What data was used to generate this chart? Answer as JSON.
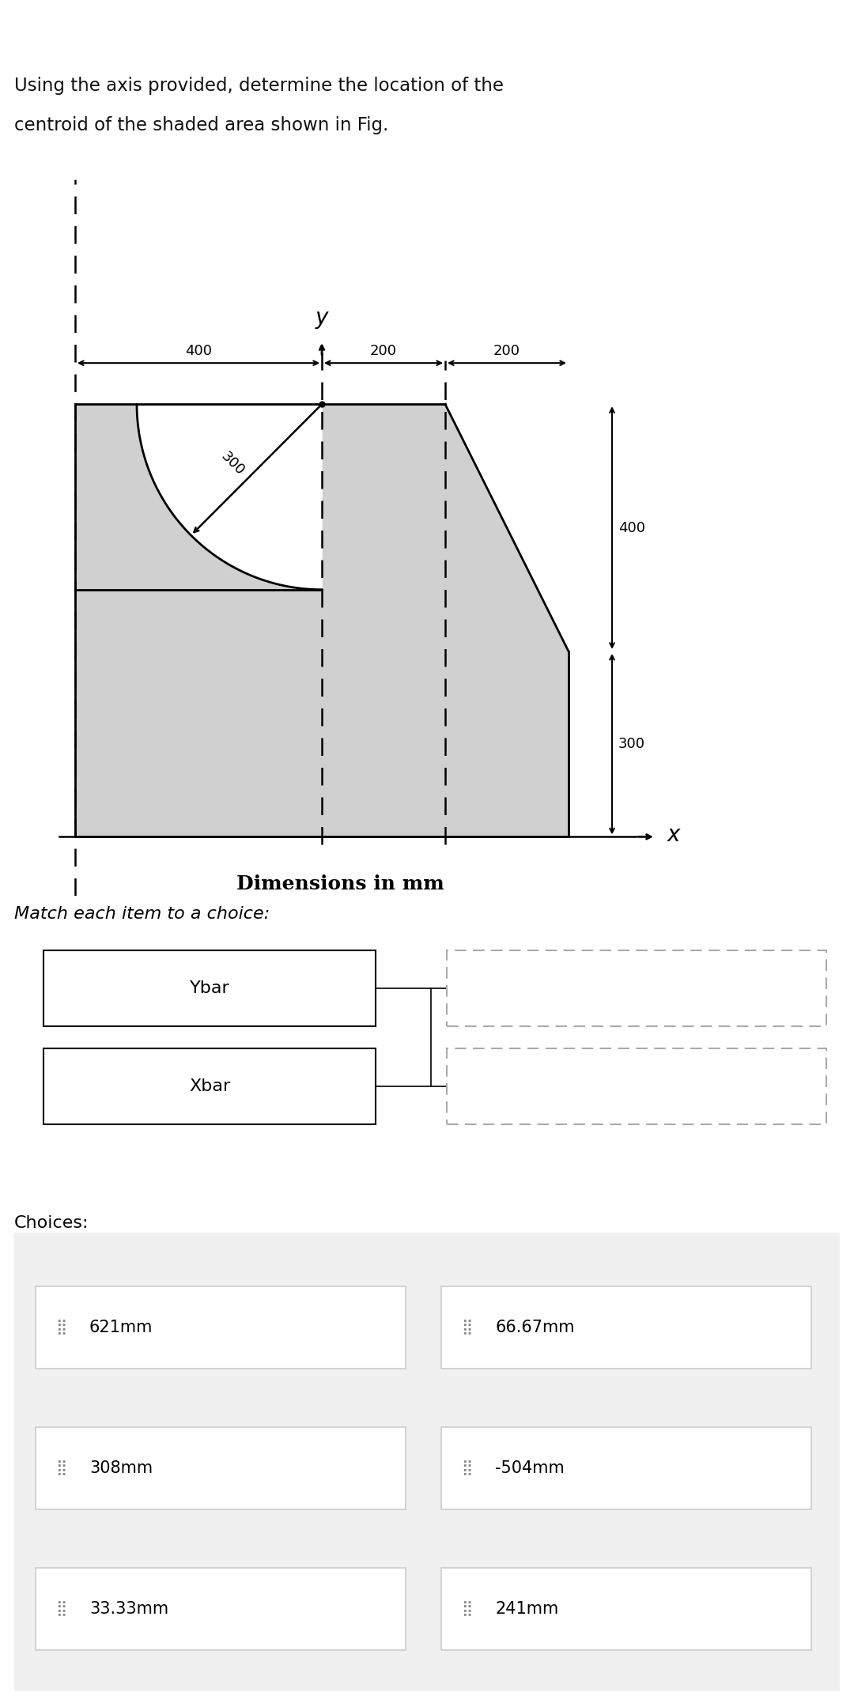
{
  "title_line1": "Using the axis provided, determine the location of the",
  "title_line2": "centroid of the shaded area shown in Fig.",
  "dim_label": "Dimensions in mm",
  "match_label": "Match each item to a choice:",
  "choices_label": "Choices:",
  "items": [
    "Ybar",
    "Xbar"
  ],
  "choices": [
    "621mm",
    "66.67mm",
    "308mm",
    "-504mm",
    "33.33mm",
    "241mm"
  ],
  "bg_color": "#ffffff",
  "shape_fill": "#d0d0d0",
  "shape_edge": "#000000",
  "header_bg": "#7b1a1a",
  "choices_bg": "#f0f0f0"
}
